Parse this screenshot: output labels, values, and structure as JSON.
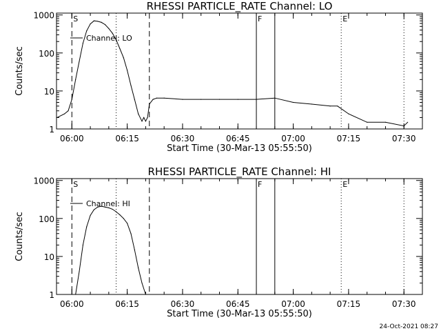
{
  "chart_data": [
    {
      "type": "line",
      "title": "RHESSI PARTICLE_RATE Channel: LO",
      "xlabel": "Start Time (30-Mar-13 05:55:50)",
      "ylabel": "Counts/sec",
      "y_scale": "log",
      "ylim": [
        1,
        1000
      ],
      "xlim": [
        "05:55:50",
        "07:35:00"
      ],
      "x_ticks": [
        "06:00",
        "06:15",
        "06:30",
        "06:45",
        "07:00",
        "07:15",
        "07:30"
      ],
      "y_ticks": [
        "1",
        "10",
        "100",
        "1000"
      ],
      "grid": false,
      "legend_position": "top-left",
      "series": [
        {
          "name": "Channel: LO",
          "x": [
            "05:56",
            "05:58",
            "05:59",
            "06:00",
            "06:01",
            "06:02",
            "06:03",
            "06:04",
            "06:05",
            "06:06",
            "06:07",
            "06:08",
            "06:09",
            "06:10",
            "06:11",
            "06:12",
            "06:13",
            "06:14",
            "06:15",
            "06:16",
            "06:17",
            "06:18",
            "06:19",
            "06:19:30",
            "06:20",
            "06:20:30",
            "06:21",
            "06:22",
            "06:23",
            "06:25",
            "06:30",
            "06:35",
            "06:40",
            "06:45",
            "06:50",
            "06:55",
            "07:00",
            "07:05",
            "07:10",
            "07:12",
            "07:15",
            "07:20",
            "07:25",
            "07:30",
            "07:31"
          ],
          "y": [
            2,
            2.5,
            3,
            6,
            20,
            60,
            180,
            380,
            580,
            700,
            680,
            640,
            560,
            440,
            330,
            220,
            130,
            75,
            35,
            14,
            6,
            2.5,
            1.6,
            2,
            1.6,
            2,
            4.5,
            6,
            6.5,
            6.5,
            6,
            6,
            6,
            6,
            6,
            6.5,
            5,
            4.5,
            4,
            4,
            2.5,
            1.5,
            1.5,
            1.2,
            1.5
          ]
        }
      ],
      "markers": [
        {
          "label": "S",
          "time": "06:00",
          "style": "dashed"
        },
        {
          "label": "",
          "time": "06:21",
          "style": "dashed"
        },
        {
          "label": "",
          "time": "06:12",
          "style": "dotted"
        },
        {
          "label": "F",
          "time": "06:50",
          "style": "solid"
        },
        {
          "label": "",
          "time": "06:55",
          "style": "solid"
        },
        {
          "label": "E",
          "time": "07:13",
          "style": "dotted"
        },
        {
          "label": "",
          "time": "07:30",
          "style": "dotted"
        }
      ]
    },
    {
      "type": "line",
      "title": "RHESSI PARTICLE_RATE Channel: HI",
      "xlabel": "Start Time (30-Mar-13 05:55:50)",
      "ylabel": "Counts/sec",
      "y_scale": "log",
      "ylim": [
        1,
        1000
      ],
      "xlim": [
        "05:55:50",
        "07:35:00"
      ],
      "x_ticks": [
        "06:00",
        "06:15",
        "06:30",
        "06:45",
        "07:00",
        "07:15",
        "07:30"
      ],
      "y_ticks": [
        "1",
        "10",
        "100",
        "1000"
      ],
      "grid": false,
      "legend_position": "top-left",
      "series": [
        {
          "name": "Channel: HI",
          "x": [
            "06:01",
            "06:02",
            "06:03",
            "06:04",
            "06:05",
            "06:06",
            "06:07",
            "06:08",
            "06:09",
            "06:10",
            "06:11",
            "06:12",
            "06:13",
            "06:14",
            "06:15",
            "06:16",
            "06:17",
            "06:18",
            "06:19",
            "06:20"
          ],
          "y": [
            1,
            4,
            20,
            60,
            120,
            170,
            200,
            210,
            200,
            190,
            175,
            150,
            125,
            100,
            75,
            40,
            15,
            5,
            2,
            1
          ]
        }
      ],
      "markers": [
        {
          "label": "S",
          "time": "06:00",
          "style": "dashed"
        },
        {
          "label": "",
          "time": "06:21",
          "style": "dashed"
        },
        {
          "label": "",
          "time": "06:12",
          "style": "dotted"
        },
        {
          "label": "F",
          "time": "06:50",
          "style": "solid"
        },
        {
          "label": "",
          "time": "06:55",
          "style": "solid"
        },
        {
          "label": "E",
          "time": "07:13",
          "style": "dotted"
        },
        {
          "label": "",
          "time": "07:30",
          "style": "dotted"
        }
      ]
    }
  ],
  "footer": {
    "timestamp": "24-Oct-2021 08:27"
  }
}
